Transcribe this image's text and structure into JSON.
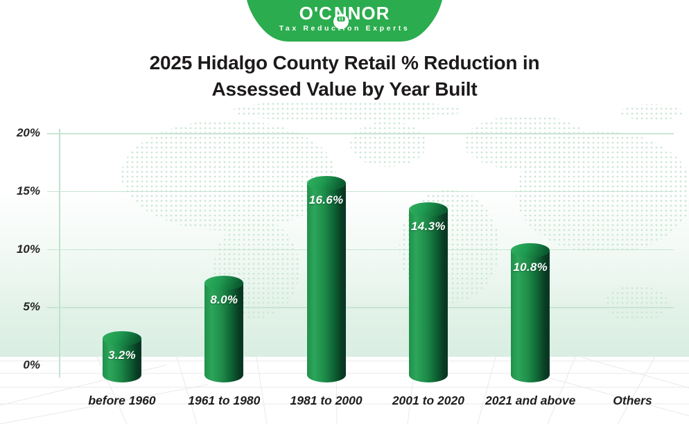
{
  "logo": {
    "brand_left": "O'C",
    "brand_right": "NNOR",
    "brand_full": "O'CONNOR",
    "tagline": "Tax Reduction Experts",
    "badge_color": "#2BAC4E"
  },
  "title": {
    "line1": "2025 Hidalgo County Retail % Reduction in",
    "line2": "Assessed Value by Year Built"
  },
  "chart_data": {
    "type": "bar",
    "variant": "3d-cylinder",
    "title": "2025 Hidalgo County Retail % Reduction in Assessed Value by Year Built",
    "categories": [
      "before 1960",
      "1961 to 1980",
      "1981 to 2000",
      "2001 to 2020",
      "2021 and above",
      "Others"
    ],
    "series": [
      {
        "name": "Retail % Reduction in Assessed Value",
        "values": [
          3.2,
          8.0,
          16.6,
          14.3,
          10.8,
          null
        ]
      }
    ],
    "value_labels": [
      "3.2%",
      "8.0%",
      "16.6%",
      "14.3%",
      "10.8%",
      ""
    ],
    "xlabel": "",
    "ylabel": "",
    "ylim": [
      0,
      20
    ],
    "yticks": [
      {
        "value": 0,
        "label": "0%"
      },
      {
        "value": 5,
        "label": "5%"
      },
      {
        "value": 10,
        "label": "10%"
      },
      {
        "value": 15,
        "label": "15%"
      },
      {
        "value": 20,
        "label": "20%"
      }
    ],
    "grid": true,
    "legend": "none",
    "colors": {
      "bar_light": "#2CA65A",
      "bar_dark": "#083A22",
      "grid_line": "#C6E5D2",
      "axis_line": "#BFE2CC",
      "background_band": "#DAEEE3",
      "map_dots": "#C8E6D3",
      "floor_line": "#E9E9E9",
      "title_text": "#1D1A1B",
      "category_text": "#1D1D1D",
      "value_text": "#FFFFFF"
    }
  }
}
